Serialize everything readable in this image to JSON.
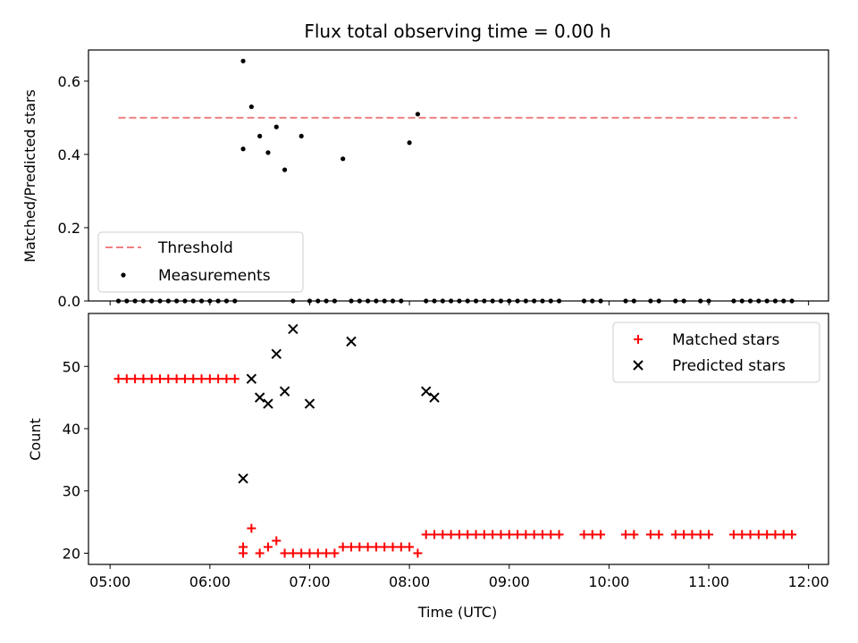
{
  "chart_data": [
    {
      "type": "scatter",
      "title": "Flux total observing time = 0.00 h",
      "xlabel": "",
      "ylabel": "Matched/Predicted stars",
      "ylim": [
        0,
        0.685
      ],
      "yticks": [
        "0.0",
        "0.2",
        "0.4",
        "0.6"
      ],
      "xticks": [
        "05:00",
        "06:00",
        "07:00",
        "08:00",
        "09:00",
        "10:00",
        "11:00",
        "12:00"
      ],
      "xlim": [
        "04:47",
        "12:12"
      ],
      "legend_position": "lower-left",
      "series": [
        {
          "name": "Threshold",
          "style": "dashed-line",
          "color": "#f08080",
          "x": [
            "05:05",
            "11:53"
          ],
          "y": [
            0.5,
            0.5
          ]
        },
        {
          "name": "Measurements",
          "style": "dots",
          "color": "#000000",
          "x": [
            "05:05",
            "05:10",
            "05:15",
            "05:20",
            "05:25",
            "05:30",
            "05:35",
            "05:40",
            "05:45",
            "05:50",
            "05:55",
            "06:00",
            "06:05",
            "06:10",
            "06:15",
            "06:20",
            "06:20",
            "06:25",
            "06:30",
            "06:35",
            "06:40",
            "06:45",
            "06:50",
            "06:55",
            "07:00",
            "07:05",
            "07:10",
            "07:15",
            "07:20",
            "07:25",
            "07:30",
            "07:35",
            "07:40",
            "07:45",
            "07:50",
            "07:55",
            "08:00",
            "08:05",
            "08:10",
            "08:15",
            "08:20",
            "08:25",
            "08:30",
            "08:35",
            "08:40",
            "08:45",
            "08:50",
            "08:55",
            "09:00",
            "09:05",
            "09:10",
            "09:15",
            "09:20",
            "09:25",
            "09:30",
            "09:45",
            "09:50",
            "09:55",
            "10:10",
            "10:15",
            "10:25",
            "10:30",
            "10:40",
            "10:45",
            "10:55",
            "11:00",
            "11:15",
            "11:20",
            "11:25",
            "11:30",
            "11:35",
            "11:40",
            "11:45",
            "11:50"
          ],
          "y": [
            0,
            0,
            0,
            0,
            0,
            0,
            0,
            0,
            0,
            0,
            0,
            0,
            0,
            0,
            0,
            0.655,
            0.415,
            0.53,
            0.45,
            0.405,
            0.475,
            0.358,
            0,
            0.45,
            0,
            0,
            0,
            0,
            0.388,
            0,
            0,
            0,
            0,
            0,
            0,
            0,
            0.432,
            0.51,
            0,
            0,
            0,
            0,
            0,
            0,
            0,
            0,
            0,
            0,
            0,
            0,
            0,
            0,
            0,
            0,
            0,
            0,
            0,
            0,
            0,
            0,
            0,
            0,
            0,
            0,
            0,
            0,
            0,
            0,
            0,
            0,
            0,
            0,
            0,
            0
          ]
        }
      ]
    },
    {
      "type": "scatter",
      "title": "",
      "xlabel": "Time (UTC)",
      "ylabel": "Count",
      "ylim": [
        18.2,
        58.5
      ],
      "yticks": [
        "20",
        "30",
        "40",
        "50"
      ],
      "xticks": [
        "05:00",
        "06:00",
        "07:00",
        "08:00",
        "09:00",
        "10:00",
        "11:00",
        "12:00"
      ],
      "xlim": [
        "04:47",
        "12:12"
      ],
      "legend_position": "upper-right",
      "series": [
        {
          "name": "Matched stars",
          "marker": "plus",
          "color": "#ff0000",
          "x": [
            "05:05",
            "05:10",
            "05:15",
            "05:20",
            "05:25",
            "05:30",
            "05:35",
            "05:40",
            "05:45",
            "05:50",
            "05:55",
            "06:00",
            "06:05",
            "06:10",
            "06:15",
            "06:20",
            "06:20",
            "06:25",
            "06:30",
            "06:35",
            "06:40",
            "06:45",
            "06:50",
            "06:55",
            "07:00",
            "07:05",
            "07:10",
            "07:15",
            "07:20",
            "07:25",
            "07:30",
            "07:35",
            "07:40",
            "07:45",
            "07:50",
            "07:55",
            "08:00",
            "08:05",
            "08:10",
            "08:15",
            "08:20",
            "08:25",
            "08:30",
            "08:35",
            "08:40",
            "08:45",
            "08:50",
            "08:55",
            "09:00",
            "09:05",
            "09:10",
            "09:15",
            "09:20",
            "09:25",
            "09:30",
            "09:45",
            "09:50",
            "09:55",
            "10:10",
            "10:15",
            "10:25",
            "10:30",
            "10:40",
            "10:45",
            "10:50",
            "10:55",
            "11:00",
            "11:15",
            "11:20",
            "11:25",
            "11:30",
            "11:35",
            "11:40",
            "11:45",
            "11:50"
          ],
          "y": [
            48,
            48,
            48,
            48,
            48,
            48,
            48,
            48,
            48,
            48,
            48,
            48,
            48,
            48,
            48,
            21,
            20,
            24,
            20,
            21,
            22,
            20,
            20,
            20,
            20,
            20,
            20,
            20,
            21,
            21,
            21,
            21,
            21,
            21,
            21,
            21,
            21,
            20,
            23,
            23,
            23,
            23,
            23,
            23,
            23,
            23,
            23,
            23,
            23,
            23,
            23,
            23,
            23,
            23,
            23,
            23,
            23,
            23,
            23,
            23,
            23,
            23,
            23,
            23,
            23,
            23,
            23,
            23,
            23,
            23,
            23,
            23,
            23,
            23,
            23
          ]
        },
        {
          "name": "Predicted stars",
          "marker": "x",
          "color": "#000000",
          "x": [
            "06:20",
            "06:25",
            "06:30",
            "06:35",
            "06:40",
            "06:45",
            "06:50",
            "07:00",
            "07:25",
            "08:10",
            "08:15"
          ],
          "y": [
            32,
            48,
            45,
            44,
            52,
            46,
            56,
            44,
            54,
            46,
            45
          ]
        }
      ]
    }
  ]
}
